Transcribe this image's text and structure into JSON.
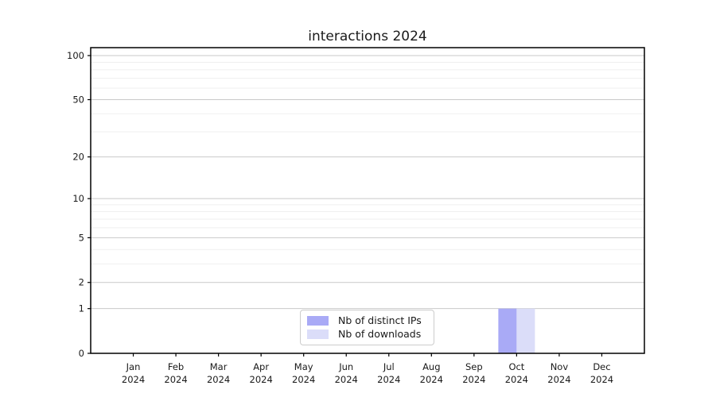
{
  "chart_data": {
    "type": "bar",
    "title": "interactions 2024",
    "categories": [
      "Jan",
      "Feb",
      "Mar",
      "Apr",
      "May",
      "Jun",
      "Jul",
      "Aug",
      "Sep",
      "Oct",
      "Nov",
      "Dec"
    ],
    "category_year": "2024",
    "series": [
      {
        "name": "Nb of distinct IPs",
        "color": "#a9aaf6",
        "values": [
          0,
          0,
          0,
          0,
          0,
          0,
          0,
          0,
          0,
          1,
          0,
          0
        ]
      },
      {
        "name": "Nb of downloads",
        "color": "#dbddf9",
        "values": [
          0,
          0,
          0,
          0,
          0,
          0,
          0,
          0,
          0,
          1,
          0,
          0
        ]
      }
    ],
    "yaxis": {
      "scale": "log10(value+1)",
      "major_ticks": [
        0,
        1,
        2,
        5,
        10,
        20,
        50,
        100
      ],
      "minor_ticks": [
        3,
        4,
        6,
        7,
        8,
        9,
        30,
        40,
        60,
        70,
        80,
        90,
        110
      ],
      "top_value": 113.2
    },
    "grid": {
      "major_color": "#c9c9c9",
      "minor_color": "#efefef"
    },
    "spine_color": "#000000",
    "legend": {
      "position": "bottom-center",
      "border_color": "#cccccc"
    }
  }
}
